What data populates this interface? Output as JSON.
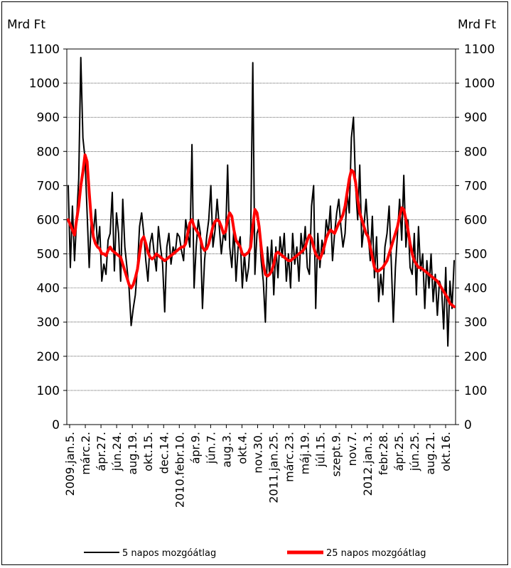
{
  "chart_data": {
    "type": "line",
    "ylabel_left": "Mrd Ft",
    "ylabel_right": "Mrd Ft",
    "ylim": [
      0,
      1100
    ],
    "yticks": [
      0,
      100,
      200,
      300,
      400,
      500,
      600,
      700,
      800,
      900,
      1000,
      1100
    ],
    "grid": "horizontal",
    "legend_position": "bottom",
    "x_tick_labels": [
      "2009.jan.5.",
      "márc.2.",
      "ápr.27.",
      "jún.24.",
      "aug.19.",
      "okt.15.",
      "dec.14.",
      "2010.febr.10.",
      "ápr.9.",
      "jún.7.",
      "aug.3.",
      "okt.4.",
      "nov.30.",
      "2011.jan.25.",
      "márc.23.",
      "máj.19.",
      "júl.15.",
      "szept.9.",
      "nov.7.",
      "2012.jan.3.",
      "febr.28.",
      "ápr.25.",
      "jún.25.",
      "aug.21.",
      "okt.16."
    ],
    "series": [
      {
        "name": "5 napos mozgóátlag",
        "color": "#000000",
        "values": [
          700,
          460,
          640,
          480,
          600,
          720,
          1075,
          840,
          780,
          620,
          460,
          600,
          560,
          630,
          520,
          580,
          420,
          470,
          440,
          540,
          560,
          680,
          450,
          620,
          560,
          420,
          660,
          520,
          460,
          400,
          290,
          340,
          380,
          460,
          580,
          620,
          560,
          480,
          420,
          530,
          560,
          500,
          450,
          580,
          520,
          470,
          330,
          520,
          560,
          470,
          520,
          500,
          560,
          550,
          510,
          480,
          600,
          560,
          520,
          820,
          400,
          520,
          600,
          560,
          340,
          480,
          550,
          600,
          700,
          520,
          570,
          660,
          580,
          500,
          560,
          540,
          760,
          520,
          460,
          580,
          420,
          520,
          550,
          400,
          500,
          420,
          460,
          560,
          1060,
          440,
          560,
          580,
          480,
          420,
          300,
          520,
          440,
          540,
          380,
          520,
          430,
          550,
          490,
          560,
          420,
          500,
          400,
          560,
          470,
          520,
          420,
          560,
          500,
          580,
          460,
          440,
          640,
          700,
          340,
          560,
          460,
          540,
          500,
          600,
          560,
          640,
          480,
          560,
          620,
          660,
          580,
          520,
          560,
          680,
          620,
          840,
          900,
          700,
          600,
          760,
          520,
          580,
          660,
          560,
          480,
          610,
          430,
          550,
          360,
          440,
          380,
          520,
          560,
          640,
          480,
          300,
          460,
          560,
          660,
          540,
          730,
          520,
          600,
          460,
          440,
          560,
          380,
          580,
          450,
          500,
          340,
          480,
          400,
          500,
          360,
          440,
          320,
          420,
          400,
          280,
          460,
          230,
          420,
          340,
          480
        ]
      },
      {
        "name": "25 napos mozgóátlag",
        "color": "#ff0000",
        "values": [
          600,
          585,
          570,
          555,
          600,
          640,
          700,
          740,
          790,
          770,
          680,
          600,
          550,
          530,
          520,
          515,
          500,
          500,
          495,
          510,
          520,
          510,
          505,
          500,
          495,
          490,
          470,
          450,
          430,
          410,
          400,
          410,
          430,
          455,
          500,
          540,
          550,
          530,
          505,
          490,
          485,
          490,
          500,
          495,
          490,
          485,
          480,
          485,
          490,
          495,
          500,
          505,
          510,
          515,
          520,
          520,
          530,
          560,
          590,
          600,
          580,
          570,
          560,
          545,
          520,
          510,
          515,
          530,
          555,
          580,
          595,
          600,
          595,
          580,
          560,
          565,
          600,
          620,
          610,
          570,
          540,
          530,
          520,
          500,
          495,
          500,
          505,
          520,
          580,
          630,
          620,
          580,
          520,
          470,
          440,
          435,
          440,
          450,
          470,
          500,
          505,
          500,
          495,
          490,
          485,
          480,
          480,
          485,
          490,
          495,
          500,
          505,
          510,
          520,
          540,
          555,
          545,
          520,
          500,
          490,
          485,
          500,
          520,
          545,
          560,
          570,
          565,
          560,
          575,
          590,
          600,
          615,
          640,
          680,
          720,
          745,
          740,
          710,
          660,
          620,
          600,
          580,
          560,
          550,
          520,
          490,
          460,
          450,
          450,
          455,
          460,
          470,
          480,
          500,
          520,
          540,
          560,
          580,
          610,
          635,
          630,
          600,
          570,
          530,
          500,
          480,
          470,
          460,
          460,
          455,
          450,
          445,
          440,
          435,
          430,
          425,
          420,
          410,
          400,
          390,
          380,
          370,
          355,
          350,
          345
        ]
      }
    ]
  }
}
